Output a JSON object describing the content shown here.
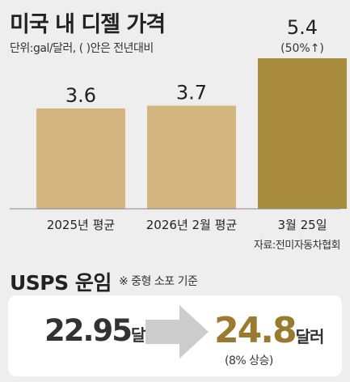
{
  "chart_data": {
    "type": "bar",
    "title": "미국 내 디젤 가격",
    "subtitle": "단위:gal/달러, (   )안은 전년대비",
    "categories": [
      "2025년 평균",
      "2026년 2월 평균",
      "3월 25일"
    ],
    "values": [
      3.6,
      3.7,
      5.4
    ],
    "value_labels": [
      "3.6",
      "3.7",
      "5.4"
    ],
    "annotations": [
      "",
      "",
      "(50%↑)"
    ],
    "colors": [
      "#d4b47f",
      "#d4b47f",
      "#a98b3d"
    ],
    "source": "자료:전미자동차협회",
    "grid": false,
    "legend": "none"
  },
  "usps": {
    "title": "USPS 운임",
    "note": "※ 중형 소포 기준",
    "before_value": "22.95",
    "before_unit": "달러",
    "after_value": "24.8",
    "after_unit": "달러",
    "after_note": "(8% 상승)",
    "accent_color": "#9a7a2c"
  }
}
